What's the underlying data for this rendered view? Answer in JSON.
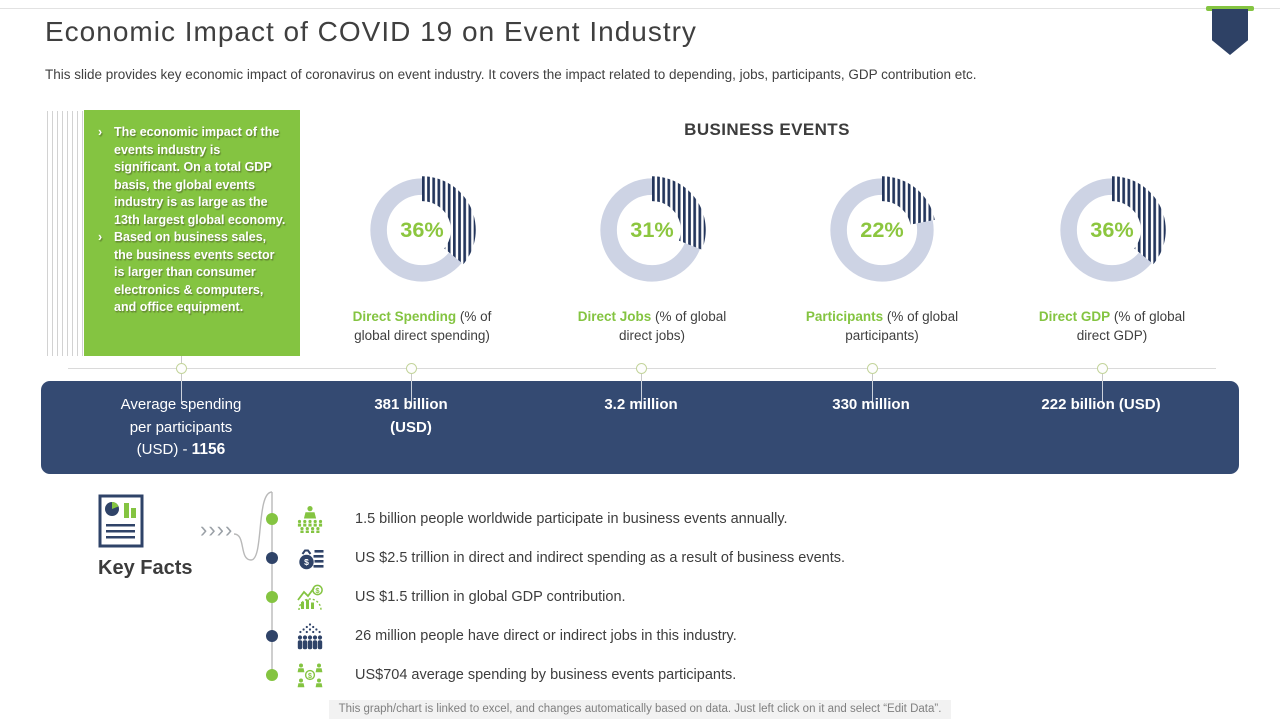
{
  "slide": {
    "title": "Economic Impact of COVID 19 on Event Industry",
    "subtitle": "This slide provides key economic impact of coronavirus on event industry. It covers the impact related to depending, jobs, participants, GDP contribution etc.",
    "section_heading": "BUSINESS EVENTS",
    "footer_note": "This graph/chart is linked to excel, and changes automatically based on data. Just left click on it and select “Edit Data”."
  },
  "callout": {
    "bullet_marker": "›",
    "bullets": [
      "The economic impact of the events industry is significant. On a total GDP basis, the global events industry is as large as the 13th largest global economy.",
      "Based on business sales, the business events sector is larger than consumer electronics & computers, and office equipment."
    ]
  },
  "chart_data": {
    "type": "pie",
    "subtype": "donut-set",
    "title": "BUSINESS EVENTS",
    "legend_position": "none",
    "charts": [
      {
        "label": "Direct Spending",
        "label_note": "(% of global direct spending)",
        "value_pct": 36,
        "remainder_pct": 64,
        "center_label": "36%",
        "linked_stat": "381 billion (USD)"
      },
      {
        "label": "Direct Jobs",
        "label_note": "(% of global direct jobs)",
        "value_pct": 31,
        "remainder_pct": 69,
        "center_label": "31%",
        "linked_stat": "3.2 million"
      },
      {
        "label": "Participants",
        "label_note": "(% of global participants)",
        "value_pct": 22,
        "remainder_pct": 78,
        "center_label": "22%",
        "linked_stat": "330 million"
      },
      {
        "label": "Direct GDP",
        "label_note": "(% of global direct GDP)",
        "value_pct": 36,
        "remainder_pct": 64,
        "center_label": "36%",
        "linked_stat": "222 billion (USD)"
      }
    ],
    "stats": [
      "Average spending per participants (USD) - 1156",
      "381 billion (USD)",
      "3.2 million",
      "330 million",
      "222 billion (USD)"
    ]
  },
  "stats_bar": {
    "columns": [
      {
        "lines": [
          "Average spending",
          "per participants",
          "(USD) - "
        ],
        "bold_value": "1156"
      },
      {
        "lines": [
          "381 billion",
          "(USD)"
        ]
      },
      {
        "lines": [
          "3.2 million"
        ]
      },
      {
        "lines": [
          "330 million"
        ]
      },
      {
        "lines": [
          "222 billion (USD)"
        ]
      }
    ]
  },
  "key_facts": {
    "heading": "Key Facts",
    "chevrons": "››››",
    "items": [
      {
        "icon": "presenter-audience-icon",
        "text": "1.5 billion people  worldwide  participate in business events annually."
      },
      {
        "icon": "money-bags-icon",
        "text": "US $2.5 trillion in direct and indirect spending as a result of business events."
      },
      {
        "icon": "gdp-growth-icon",
        "text": "US $1.5 trillion in global GDP contribution."
      },
      {
        "icon": "workforce-icon",
        "text": "26 million people have direct or indirect jobs in this industry."
      },
      {
        "icon": "participant-spending-icon",
        "text": "US$704 average spending by business events participants."
      }
    ]
  },
  "colors": {
    "green": "#84c441",
    "value_green": "#8cc63f",
    "navy": "#344a72",
    "stripe_navy": "#24365c",
    "donut_track": "#cdd3e4"
  }
}
